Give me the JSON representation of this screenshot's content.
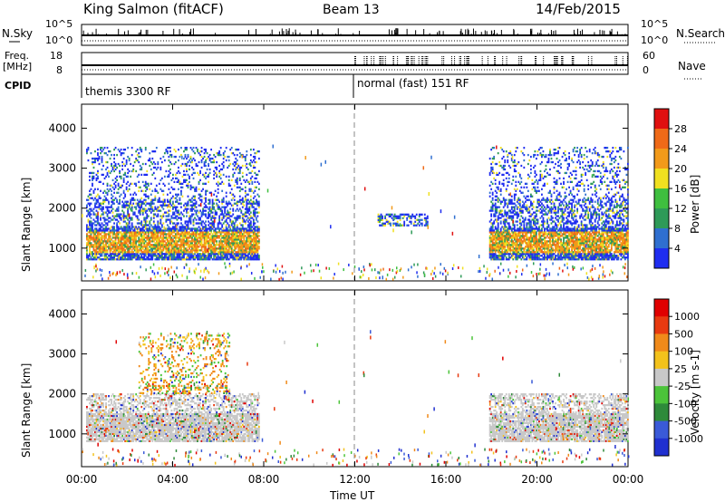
{
  "header": {
    "station": "King Salmon (fitACF)",
    "beam": "Beam 13",
    "date": "14/Feb/2015"
  },
  "strip_labels": {
    "nsky": "N.Sky",
    "nsky_ticks": [
      "10^5",
      "10^0"
    ],
    "nsearch": "N.Search",
    "nsearch_ticks": [
      "10^5",
      "10^0"
    ],
    "freq_top": "Freq.",
    "freq_unit": "[MHz]",
    "freq_ticks": [
      "18",
      "8"
    ],
    "nave": "Nave",
    "nave_ticks": [
      "60",
      "0"
    ],
    "cpid": "CPID",
    "cpid_left": "themis 3300 RF",
    "cpid_right": "normal (fast) 151 RF"
  },
  "chart_data": [
    {
      "type": "heatmap",
      "panel": "power",
      "ylabel": "Slant Range [km]",
      "xlabel": "Time UT",
      "x_ticks": [
        "00:00",
        "04:00",
        "08:00",
        "12:00",
        "16:00",
        "20:00",
        "00:00"
      ],
      "x_range_hours": [
        0,
        24
      ],
      "y_ticks": [
        1000,
        2000,
        3000,
        4000
      ],
      "ylim": [
        180,
        4600
      ],
      "colorbar_label": "Power [dB]",
      "colorbar_ticks": [
        "28",
        "24",
        "20",
        "16",
        "12",
        "8",
        "4"
      ],
      "colors": [
        "#1f2df0",
        "#2f6fd0",
        "#2e9a58",
        "#3fbf3f",
        "#f0e020",
        "#f29a1a",
        "#ef6a18",
        "#e01010"
      ],
      "regions": [
        {
          "t_start": 0.2,
          "t_end": 7.8,
          "range_km": [
            700,
            3500
          ],
          "level": "mixed, strong near 1000-1400 km"
        },
        {
          "t_start": 13.0,
          "t_end": 15.2,
          "range_km": [
            1550,
            1850
          ],
          "level": "weak"
        },
        {
          "t_start": 17.9,
          "t_end": 24.0,
          "range_km": [
            700,
            3500
          ],
          "level": "mixed, strong near 900-1200 km"
        }
      ]
    },
    {
      "type": "heatmap",
      "panel": "velocity",
      "ylabel": "Slant Range [km]",
      "xlabel": "Time UT",
      "x_ticks": [
        "00:00",
        "04:00",
        "08:00",
        "12:00",
        "16:00",
        "20:00",
        "00:00"
      ],
      "x_range_hours": [
        0,
        24
      ],
      "y_ticks": [
        1000,
        2000,
        3000,
        4000
      ],
      "ylim": [
        180,
        4600
      ],
      "colorbar_label": "Velocity [m s-1]",
      "colorbar_ticks": [
        "1000",
        "500",
        "100",
        "25",
        "-25",
        "-100",
        "-500",
        "-1000"
      ],
      "colors": [
        "#2030d0",
        "#3a5ad8",
        "#2e8a3a",
        "#4cc43a",
        "#c8c8c8",
        "#f3c21c",
        "#f08a1a",
        "#e83a10",
        "#e00000"
      ],
      "regions": [
        {
          "t_start": 0.2,
          "t_end": 7.8,
          "range_km": [
            800,
            2000
          ],
          "level": "mostly ground scatter (grey)"
        },
        {
          "t_start": 2.5,
          "t_end": 6.5,
          "range_km": [
            2000,
            3500
          ],
          "level": "orange/yellow (away)"
        },
        {
          "t_start": 17.9,
          "t_end": 24.0,
          "range_km": [
            800,
            2000
          ],
          "level": "mostly ground scatter (grey)"
        }
      ]
    }
  ]
}
